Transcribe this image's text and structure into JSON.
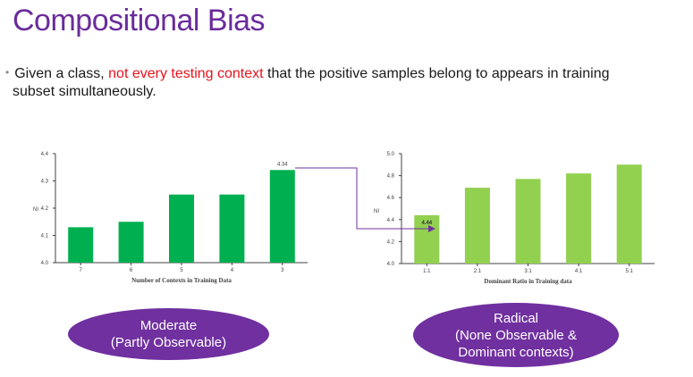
{
  "title": "Compositional Bias",
  "bullet": {
    "before": "Given a class, ",
    "highlight": "not every testing context",
    "after": " that the positive samples belong to appears in training",
    "line2": "subset simultaneously.",
    "highlight_color": "#e8121b"
  },
  "colors": {
    "left_bar": "#00b050",
    "right_bar": "#92d050",
    "connector": "#7030a0",
    "ellipse": "#7030a0"
  },
  "chart_data": [
    {
      "type": "bar",
      "categories": [
        "7",
        "6",
        "5",
        "4",
        "3"
      ],
      "values": [
        4.13,
        4.15,
        4.25,
        4.25,
        4.34
      ],
      "data_labels": [
        "",
        "",
        "",
        "",
        "4.34"
      ],
      "ylabel": "NI",
      "xlabel": "Number of Contexts in Training Data",
      "ylim": [
        4.0,
        4.4
      ],
      "yticks": [
        "4.0",
        "4.1",
        "4.2",
        "4.3",
        "4.4"
      ]
    },
    {
      "type": "bar",
      "categories": [
        "1:1",
        "2:1",
        "3:1",
        "4:1",
        "5:1"
      ],
      "values": [
        4.44,
        4.69,
        4.77,
        4.82,
        4.9
      ],
      "data_labels": [
        "4.44",
        "",
        "",
        "",
        ""
      ],
      "ylabel": "NI",
      "xlabel": "Dominant Ratio in Training data",
      "ylim": [
        4.0,
        5.0
      ],
      "yticks": [
        "4.0",
        "4.2",
        "4.4",
        "4.6",
        "4.8",
        "5.0"
      ]
    }
  ],
  "labels": {
    "left": [
      "Moderate",
      "(Partly Observable)"
    ],
    "right": [
      "Radical",
      "(None Observable &",
      "Dominant contexts)"
    ]
  }
}
